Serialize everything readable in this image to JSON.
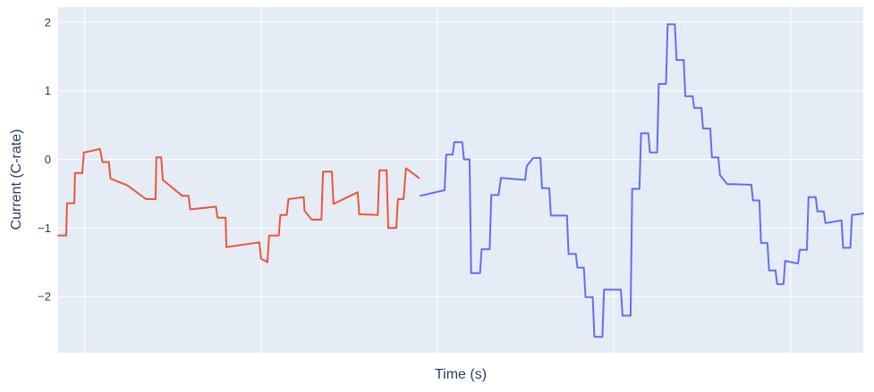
{
  "chart_data": {
    "type": "line",
    "title": "",
    "xlabel": "Time (s)",
    "ylabel": "Current (C-rate)",
    "ylim": [
      -2.82,
      2.22
    ],
    "xlim": [
      0,
      100
    ],
    "y_ticks": [
      -2,
      -1,
      0,
      1,
      2
    ],
    "y_tick_labels": [
      "−2",
      "−1",
      "0",
      "1",
      "2"
    ],
    "x_ticks": [
      3.3,
      25.2,
      47.1,
      69.0,
      91.0
    ],
    "grid": true,
    "legend": "none",
    "colors": {
      "plot_bg": "#E5ECF6",
      "grid": "#ffffff",
      "text": "#2a3f5f"
    },
    "series": [
      {
        "color": "#EF553B",
        "points": [
          [
            0.0,
            -1.11
          ],
          [
            1.0,
            -1.11
          ],
          [
            1.1,
            -0.64
          ],
          [
            2.0,
            -0.64
          ],
          [
            2.1,
            -0.2
          ],
          [
            3.0,
            -0.2
          ],
          [
            3.2,
            0.1
          ],
          [
            5.2,
            0.15
          ],
          [
            5.5,
            -0.04
          ],
          [
            6.3,
            -0.04
          ],
          [
            6.5,
            -0.28
          ],
          [
            8.6,
            -0.38
          ],
          [
            10.9,
            -0.58
          ],
          [
            12.1,
            -0.58
          ],
          [
            12.2,
            0.03
          ],
          [
            12.8,
            0.03
          ],
          [
            13.0,
            -0.3
          ],
          [
            15.4,
            -0.53
          ],
          [
            16.2,
            -0.53
          ],
          [
            16.4,
            -0.73
          ],
          [
            19.6,
            -0.69
          ],
          [
            19.8,
            -0.85
          ],
          [
            20.8,
            -0.85
          ],
          [
            20.9,
            -1.28
          ],
          [
            25.0,
            -1.21
          ],
          [
            25.2,
            -1.45
          ],
          [
            26.0,
            -1.5
          ],
          [
            26.2,
            -1.11
          ],
          [
            27.4,
            -1.11
          ],
          [
            27.6,
            -0.81
          ],
          [
            28.4,
            -0.81
          ],
          [
            28.6,
            -0.58
          ],
          [
            30.5,
            -0.55
          ],
          [
            30.6,
            -0.75
          ],
          [
            31.5,
            -0.88
          ],
          [
            32.7,
            -0.88
          ],
          [
            32.9,
            -0.18
          ],
          [
            34.0,
            -0.18
          ],
          [
            34.2,
            -0.65
          ],
          [
            37.2,
            -0.48
          ],
          [
            37.4,
            -0.8
          ],
          [
            39.7,
            -0.81
          ],
          [
            39.9,
            -0.16
          ],
          [
            40.8,
            -0.16
          ],
          [
            41.0,
            -1.0
          ],
          [
            42.0,
            -1.0
          ],
          [
            42.2,
            -0.58
          ],
          [
            42.9,
            -0.58
          ],
          [
            43.2,
            -0.13
          ],
          [
            44.8,
            -0.27
          ]
        ]
      },
      {
        "color": "#636EFA",
        "points": [
          [
            45.0,
            -0.53
          ],
          [
            48.0,
            -0.45
          ],
          [
            48.2,
            0.07
          ],
          [
            49.0,
            0.07
          ],
          [
            49.2,
            0.25
          ],
          [
            50.2,
            0.25
          ],
          [
            50.4,
            0.0
          ],
          [
            51.1,
            0.0
          ],
          [
            51.3,
            -1.66
          ],
          [
            52.4,
            -1.66
          ],
          [
            52.6,
            -1.31
          ],
          [
            53.6,
            -1.31
          ],
          [
            53.8,
            -0.52
          ],
          [
            54.7,
            -0.52
          ],
          [
            55.0,
            -0.27
          ],
          [
            58.0,
            -0.3
          ],
          [
            58.2,
            -0.1
          ],
          [
            59.0,
            0.02
          ],
          [
            59.9,
            0.02
          ],
          [
            60.1,
            -0.42
          ],
          [
            61.0,
            -0.42
          ],
          [
            61.2,
            -0.82
          ],
          [
            63.2,
            -0.82
          ],
          [
            63.4,
            -1.38
          ],
          [
            64.3,
            -1.38
          ],
          [
            64.5,
            -1.58
          ],
          [
            65.3,
            -1.58
          ],
          [
            65.5,
            -2.01
          ],
          [
            66.4,
            -2.01
          ],
          [
            66.6,
            -2.59
          ],
          [
            67.6,
            -2.59
          ],
          [
            67.8,
            -1.9
          ],
          [
            69.9,
            -1.9
          ],
          [
            70.1,
            -2.28
          ],
          [
            71.1,
            -2.28
          ],
          [
            71.3,
            -0.43
          ],
          [
            72.2,
            -0.43
          ],
          [
            72.4,
            0.38
          ],
          [
            73.3,
            0.38
          ],
          [
            73.5,
            0.1
          ],
          [
            74.4,
            0.1
          ],
          [
            74.6,
            1.1
          ],
          [
            75.5,
            1.1
          ],
          [
            75.7,
            1.97
          ],
          [
            76.6,
            1.97
          ],
          [
            76.8,
            1.45
          ],
          [
            77.7,
            1.45
          ],
          [
            77.9,
            0.92
          ],
          [
            78.8,
            0.92
          ],
          [
            79.0,
            0.75
          ],
          [
            79.9,
            0.75
          ],
          [
            80.1,
            0.45
          ],
          [
            81.0,
            0.45
          ],
          [
            81.2,
            0.03
          ],
          [
            82.0,
            0.03
          ],
          [
            82.2,
            -0.23
          ],
          [
            83.1,
            -0.36
          ],
          [
            86.1,
            -0.37
          ],
          [
            86.3,
            -0.6
          ],
          [
            87.1,
            -0.6
          ],
          [
            87.3,
            -1.22
          ],
          [
            88.1,
            -1.22
          ],
          [
            88.3,
            -1.62
          ],
          [
            89.1,
            -1.62
          ],
          [
            89.3,
            -1.82
          ],
          [
            90.1,
            -1.82
          ],
          [
            90.3,
            -1.48
          ],
          [
            91.9,
            -1.52
          ],
          [
            92.1,
            -1.32
          ],
          [
            93.0,
            -1.32
          ],
          [
            93.2,
            -0.55
          ],
          [
            94.1,
            -0.55
          ],
          [
            94.3,
            -0.76
          ],
          [
            95.1,
            -0.76
          ],
          [
            95.3,
            -0.93
          ],
          [
            97.3,
            -0.89
          ],
          [
            97.5,
            -1.29
          ],
          [
            98.4,
            -1.29
          ],
          [
            98.6,
            -0.81
          ],
          [
            100.0,
            -0.79
          ]
        ]
      }
    ]
  }
}
